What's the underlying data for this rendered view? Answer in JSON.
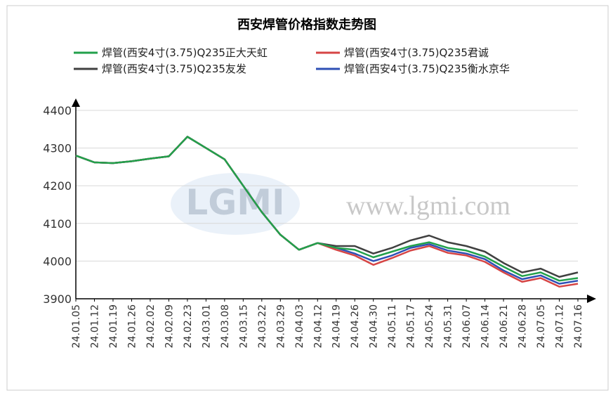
{
  "chart_data": {
    "type": "line",
    "title": "西安焊管价格指数走势图",
    "watermark": {
      "logo": "LGMI",
      "url": "www.lgmi.com"
    },
    "categories": [
      "24.01.05",
      "24.01.12",
      "24.01.19",
      "24.01.26",
      "24.02.02",
      "24.02.09",
      "24.02.23",
      "24.03.01",
      "24.03.08",
      "24.03.15",
      "24.03.22",
      "24.03.29",
      "24.04.03",
      "24.04.12",
      "24.04.19",
      "24.04.26",
      "24.04.30",
      "24.05.11",
      "24.05.17",
      "24.05.24",
      "24.05.31",
      "24.06.07",
      "24.06.14",
      "24.06.21",
      "24.06.28",
      "24.07.05",
      "24.07.12",
      "24.07.16"
    ],
    "series": [
      {
        "name": "焊管(西安4寸(3.75)Q235友发",
        "color": "#404040",
        "values": [
          4280,
          4262,
          4260,
          4265,
          4272,
          4278,
          4330,
          4300,
          4270,
          4200,
          4130,
          4070,
          4030,
          4048,
          4040,
          4040,
          4020,
          4035,
          4055,
          4068,
          4050,
          4040,
          4025,
          3995,
          3970,
          3980,
          3958,
          3970
        ]
      },
      {
        "name": "焊管(西安4寸(3.75)Q235衡水京华",
        "color": "#2e4fb5",
        "values": [
          4280,
          4262,
          4260,
          4265,
          4272,
          4278,
          4330,
          4300,
          4270,
          4200,
          4130,
          4070,
          4030,
          4048,
          4035,
          4020,
          4000,
          4015,
          4035,
          4045,
          4028,
          4020,
          4005,
          3975,
          3952,
          3962,
          3940,
          3948
        ]
      },
      {
        "name": "焊管(西安4寸(3.75)Q235君诚",
        "color": "#d64545",
        "values": [
          4280,
          4262,
          4260,
          4265,
          4272,
          4278,
          4330,
          4300,
          4270,
          4200,
          4130,
          4070,
          4030,
          4048,
          4030,
          4015,
          3990,
          4008,
          4028,
          4040,
          4022,
          4015,
          3998,
          3970,
          3945,
          3955,
          3932,
          3940
        ]
      },
      {
        "name": "焊管(西安4寸(3.75)Q235正大天虹",
        "color": "#22a04b",
        "values": [
          4280,
          4262,
          4260,
          4265,
          4272,
          4278,
          4330,
          4300,
          4270,
          4200,
          4130,
          4070,
          4030,
          4048,
          4035,
          4030,
          4010,
          4025,
          4040,
          4050,
          4035,
          4028,
          4012,
          3985,
          3960,
          3970,
          3948,
          3955
        ]
      }
    ],
    "ylim": [
      3900,
      4400
    ],
    "yticks": [
      3900,
      4000,
      4100,
      4200,
      4300,
      4400
    ],
    "grid": true
  }
}
